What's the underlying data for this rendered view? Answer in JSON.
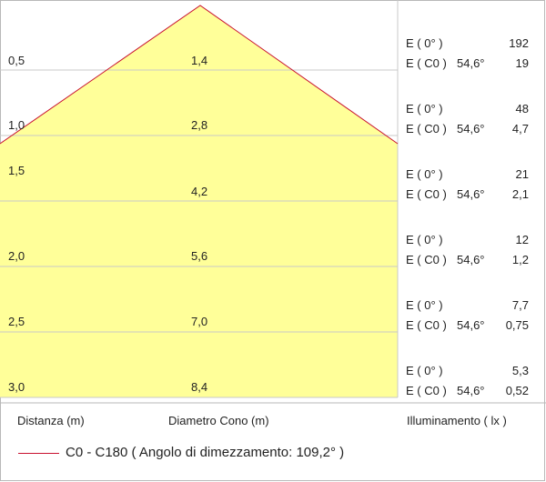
{
  "colors": {
    "cone_fill": "#ffff99",
    "cone_edge": "#c8102e",
    "grid_line": "#c8c8c8"
  },
  "rows": [
    {
      "distance": "0,5",
      "diameter": "1,4",
      "e0_label": "E ( 0° )",
      "e0_value": "192",
      "ec0_label": "E ( C0 )",
      "ec0_angle": "54,6°",
      "ec0_value": "19"
    },
    {
      "distance": "1,0",
      "diameter": "2,8",
      "e0_label": "E ( 0° )",
      "e0_value": "48",
      "ec0_label": "E ( C0 )",
      "ec0_angle": "54,6°",
      "ec0_value": "4,7"
    },
    {
      "distance": "1,5",
      "diameter": "4,2",
      "e0_label": "E ( 0° )",
      "e0_value": "21",
      "ec0_label": "E ( C0 )",
      "ec0_angle": "54,6°",
      "ec0_value": "2,1"
    },
    {
      "distance": "2,0",
      "diameter": "5,6",
      "e0_label": "E ( 0° )",
      "e0_value": "12",
      "ec0_label": "E ( C0 )",
      "ec0_angle": "54,6°",
      "ec0_value": "1,2"
    },
    {
      "distance": "2,5",
      "diameter": "7,0",
      "e0_label": "E ( 0° )",
      "e0_value": "7,7",
      "ec0_label": "E ( C0 )",
      "ec0_angle": "54,6°",
      "ec0_value": "0,75"
    },
    {
      "distance": "3,0",
      "diameter": "8,4",
      "e0_label": "E ( 0° )",
      "e0_value": "5,3",
      "ec0_label": "E ( C0 )",
      "ec0_angle": "54,6°",
      "ec0_value": "0,52"
    }
  ],
  "footer": {
    "distance_label": "Distanza (m)",
    "diameter_label": "Diametro Cono (m)",
    "illuminance_label": "Illuminamento ( lx )"
  },
  "legend": {
    "text": "C0 - C180  ( Angolo di dimezzamento: 109,2° )"
  }
}
